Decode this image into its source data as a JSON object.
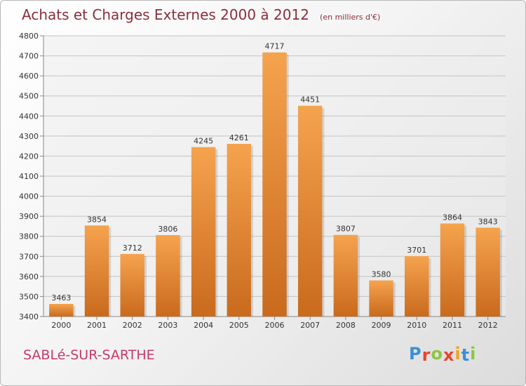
{
  "title": "Achats et Charges Externes 2000 à 2012",
  "unit": "(en milliers d'€)",
  "city": "SABLé-SUR-SARTHE",
  "logo": {
    "text": "Proxiti",
    "colors": [
      "#3b8fd6",
      "#e8452c",
      "#8cc63e",
      "#e8452c",
      "#f4a21d",
      "#3b8fd6",
      "#8cc63e"
    ]
  },
  "colors": {
    "bar_light": "#f5a34e",
    "bar_dark": "#c96a1d",
    "title": "#8a2f3c",
    "city": "#c43a6a"
  },
  "chart_data": {
    "type": "bar",
    "categories": [
      "2000",
      "2001",
      "2002",
      "2003",
      "2004",
      "2005",
      "2006",
      "2007",
      "2008",
      "2009",
      "2010",
      "2011",
      "2012"
    ],
    "values": [
      3463,
      3854,
      3712,
      3806,
      4245,
      4261,
      4717,
      4451,
      3807,
      3580,
      3701,
      3864,
      3843
    ],
    "ylim": [
      3400,
      4800
    ],
    "yticks": [
      3400,
      3500,
      3600,
      3700,
      3800,
      3900,
      4000,
      4100,
      4200,
      4300,
      4400,
      4500,
      4600,
      4700,
      4800
    ],
    "grid": true,
    "data_labels": true
  }
}
